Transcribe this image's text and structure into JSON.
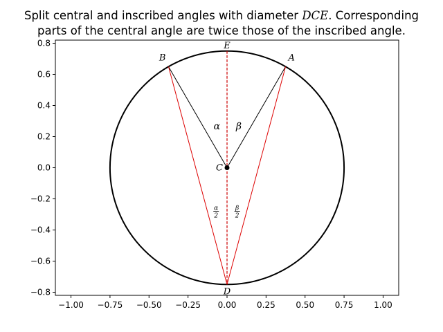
{
  "title": {
    "line1_pre": "Split central and inscribed angles with diameter ",
    "line1_math": "DCE",
    "line1_post": ".  Corresponding",
    "line2": "parts of the central angle are twice those of the inscribed angle."
  },
  "chart_data": {
    "type": "diagram",
    "xlim": [
      -1.1,
      1.1
    ],
    "ylim": [
      -0.82,
      0.82
    ],
    "x_ticks": [
      "−1.00",
      "−0.75",
      "−0.50",
      "−0.25",
      "0.00",
      "0.25",
      "0.50",
      "0.75",
      "1.00"
    ],
    "x_tick_values": [
      -1.0,
      -0.75,
      -0.5,
      -0.25,
      0.0,
      0.25,
      0.5,
      0.75,
      1.0
    ],
    "y_ticks": [
      "−0.8",
      "−0.6",
      "−0.4",
      "−0.2",
      "0.0",
      "0.2",
      "0.4",
      "0.6",
      "0.8"
    ],
    "y_tick_values": [
      -0.8,
      -0.6,
      -0.4,
      -0.2,
      0.0,
      0.2,
      0.4,
      0.6,
      0.8
    ],
    "circle": {
      "center": [
        0,
        0
      ],
      "radius": 0.75,
      "color": "#000000"
    },
    "points": {
      "A": [
        0.375,
        0.6495
      ],
      "B": [
        -0.375,
        0.6495
      ],
      "C": [
        0,
        0
      ],
      "D": [
        0,
        -0.75
      ],
      "E": [
        0,
        0.75
      ]
    },
    "point_labels": {
      "A": "A",
      "B": "B",
      "C": "C",
      "D": "D",
      "E": "E"
    },
    "central_color": "#000000",
    "inscribed_color": "#dd0000",
    "diameter_color": "#cc0000",
    "angle_labels": {
      "alpha": "α",
      "beta": "β",
      "alpha_half_num": "α",
      "beta_half_num": "β",
      "half_den": "2"
    }
  }
}
